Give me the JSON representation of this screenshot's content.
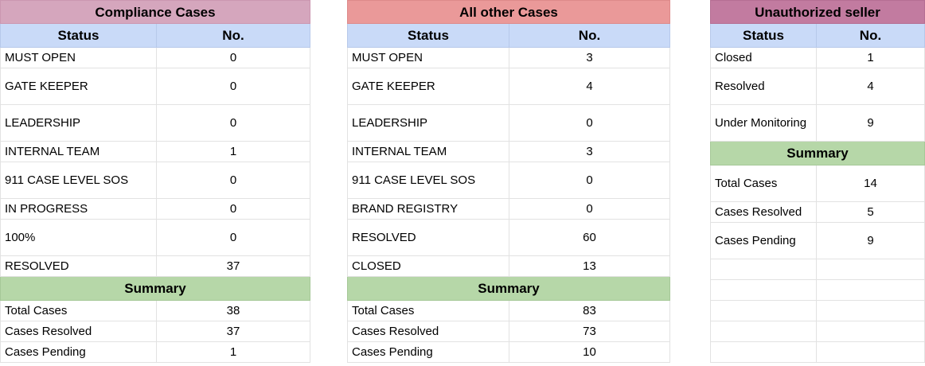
{
  "compliance": {
    "title": "Compliance Cases",
    "header": {
      "status": "Status",
      "no": "No."
    },
    "rows": [
      {
        "status": "MUST OPEN",
        "no": "0"
      },
      {
        "status": "GATE KEEPER",
        "no": "0"
      },
      {
        "status": "LEADERSHIP",
        "no": "0"
      },
      {
        "status": "INTERNAL TEAM",
        "no": "1"
      },
      {
        "status": "911 CASE LEVEL SOS",
        "no": "0"
      },
      {
        "status": "IN PROGRESS",
        "no": "0"
      },
      {
        "status": "100%",
        "no": "0"
      },
      {
        "status": "RESOLVED",
        "no": "37"
      }
    ],
    "summary_label": "Summary",
    "summary": [
      {
        "label": "Total Cases",
        "value": "38"
      },
      {
        "label": "Cases Resolved",
        "value": "37"
      },
      {
        "label": "Cases Pending",
        "value": "1"
      }
    ]
  },
  "other": {
    "title": "All other Cases",
    "header": {
      "status": "Status",
      "no": "No."
    },
    "rows": [
      {
        "status": "MUST OPEN",
        "no": "3"
      },
      {
        "status": "GATE KEEPER",
        "no": "4"
      },
      {
        "status": "LEADERSHIP",
        "no": "0"
      },
      {
        "status": "INTERNAL TEAM",
        "no": "3"
      },
      {
        "status": "911 CASE LEVEL SOS",
        "no": "0"
      },
      {
        "status": "BRAND REGISTRY",
        "no": "0"
      },
      {
        "status": "RESOLVED",
        "no": "60"
      },
      {
        "status": "CLOSED",
        "no": "13"
      }
    ],
    "summary_label": "Summary",
    "summary": [
      {
        "label": "Total Cases",
        "value": "83"
      },
      {
        "label": "Cases Resolved",
        "value": "73"
      },
      {
        "label": "Cases Pending",
        "value": "10"
      }
    ]
  },
  "unauthorized": {
    "title": "Unauthorized seller",
    "header": {
      "status": "Status",
      "no": "No."
    },
    "rows": [
      {
        "status": "Closed",
        "no": "1"
      },
      {
        "status": "Resolved",
        "no": "4"
      },
      {
        "status": "Under Monitoring",
        "no": "9"
      }
    ],
    "summary_label": "Summary",
    "summary": [
      {
        "label": "Total Cases",
        "value": "14"
      },
      {
        "label": "Cases Resolved",
        "value": "5"
      },
      {
        "label": "Cases Pending",
        "value": "9"
      }
    ]
  },
  "colors": {
    "compliance_title_bg": "#d5a6bd",
    "other_title_bg": "#ea9999",
    "unauthorized_title_bg": "#c27ba0",
    "header_bg": "#c9daf8",
    "summary_bg": "#b6d7a8"
  }
}
